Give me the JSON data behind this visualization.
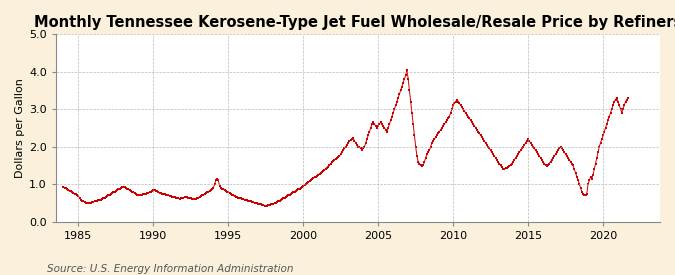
{
  "title": "Monthly Tennessee Kerosene-Type Jet Fuel Wholesale/Resale Price by Refiners",
  "ylabel": "Dollars per Gallon",
  "source": "Source: U.S. Energy Information Administration",
  "line_color": "#CC0000",
  "background_color": "#FAF0DC",
  "plot_bg_color": "#FFFFFF",
  "grid_color": "#AAAAAA",
  "xlim": [
    1983.5,
    2023.8
  ],
  "ylim": [
    0.0,
    5.0
  ],
  "yticks": [
    0.0,
    1.0,
    2.0,
    3.0,
    4.0,
    5.0
  ],
  "xticks": [
    1985,
    1990,
    1995,
    2000,
    2005,
    2010,
    2015,
    2020
  ],
  "title_fontsize": 10.5,
  "label_fontsize": 8,
  "tick_fontsize": 8,
  "source_fontsize": 7.5,
  "start_year": 1984,
  "start_month": 1,
  "prices": [
    0.93,
    0.91,
    0.89,
    0.87,
    0.85,
    0.83,
    0.81,
    0.79,
    0.77,
    0.75,
    0.73,
    0.71,
    0.68,
    0.63,
    0.58,
    0.56,
    0.54,
    0.53,
    0.51,
    0.5,
    0.49,
    0.5,
    0.51,
    0.52,
    0.53,
    0.54,
    0.55,
    0.56,
    0.57,
    0.58,
    0.59,
    0.6,
    0.62,
    0.64,
    0.66,
    0.68,
    0.7,
    0.72,
    0.74,
    0.76,
    0.78,
    0.8,
    0.82,
    0.84,
    0.86,
    0.88,
    0.9,
    0.92,
    0.93,
    0.92,
    0.9,
    0.88,
    0.86,
    0.84,
    0.82,
    0.8,
    0.78,
    0.76,
    0.74,
    0.72,
    0.7,
    0.7,
    0.71,
    0.72,
    0.73,
    0.74,
    0.75,
    0.76,
    0.77,
    0.78,
    0.8,
    0.82,
    0.84,
    0.85,
    0.83,
    0.81,
    0.79,
    0.77,
    0.76,
    0.75,
    0.74,
    0.73,
    0.72,
    0.71,
    0.7,
    0.69,
    0.68,
    0.67,
    0.66,
    0.65,
    0.64,
    0.63,
    0.62,
    0.61,
    0.62,
    0.63,
    0.64,
    0.65,
    0.66,
    0.65,
    0.64,
    0.63,
    0.62,
    0.61,
    0.6,
    0.6,
    0.61,
    0.62,
    0.64,
    0.66,
    0.68,
    0.7,
    0.72,
    0.74,
    0.76,
    0.78,
    0.8,
    0.82,
    0.84,
    0.86,
    0.9,
    1.0,
    1.1,
    1.15,
    1.1,
    0.95,
    0.9,
    0.88,
    0.86,
    0.84,
    0.82,
    0.8,
    0.78,
    0.76,
    0.74,
    0.72,
    0.7,
    0.68,
    0.66,
    0.65,
    0.64,
    0.63,
    0.62,
    0.61,
    0.6,
    0.59,
    0.58,
    0.57,
    0.56,
    0.55,
    0.54,
    0.53,
    0.52,
    0.51,
    0.5,
    0.49,
    0.48,
    0.47,
    0.46,
    0.45,
    0.44,
    0.43,
    0.43,
    0.43,
    0.44,
    0.45,
    0.46,
    0.47,
    0.48,
    0.49,
    0.5,
    0.52,
    0.54,
    0.56,
    0.58,
    0.6,
    0.62,
    0.64,
    0.66,
    0.68,
    0.7,
    0.72,
    0.74,
    0.76,
    0.78,
    0.8,
    0.82,
    0.84,
    0.86,
    0.88,
    0.9,
    0.92,
    0.95,
    0.98,
    1.0,
    1.02,
    1.05,
    1.08,
    1.1,
    1.13,
    1.16,
    1.18,
    1.2,
    1.22,
    1.25,
    1.28,
    1.3,
    1.33,
    1.35,
    1.38,
    1.4,
    1.43,
    1.46,
    1.5,
    1.55,
    1.58,
    1.62,
    1.65,
    1.68,
    1.7,
    1.72,
    1.75,
    1.8,
    1.85,
    1.9,
    1.95,
    2.0,
    2.05,
    2.1,
    2.15,
    2.18,
    2.2,
    2.22,
    2.15,
    2.1,
    2.05,
    2.0,
    1.98,
    1.95,
    1.92,
    1.95,
    2.0,
    2.1,
    2.2,
    2.3,
    2.4,
    2.5,
    2.6,
    2.65,
    2.6,
    2.55,
    2.5,
    2.55,
    2.6,
    2.65,
    2.6,
    2.55,
    2.5,
    2.45,
    2.4,
    2.5,
    2.6,
    2.7,
    2.8,
    2.9,
    3.0,
    3.1,
    3.2,
    3.3,
    3.4,
    3.5,
    3.6,
    3.7,
    3.8,
    3.9,
    4.05,
    3.8,
    3.5,
    3.2,
    2.9,
    2.6,
    2.3,
    2.0,
    1.75,
    1.6,
    1.55,
    1.5,
    1.48,
    1.5,
    1.6,
    1.7,
    1.8,
    1.85,
    1.9,
    2.0,
    2.1,
    2.15,
    2.2,
    2.25,
    2.3,
    2.35,
    2.4,
    2.45,
    2.5,
    2.55,
    2.6,
    2.65,
    2.7,
    2.75,
    2.8,
    2.9,
    3.0,
    3.1,
    3.15,
    3.2,
    3.25,
    3.2,
    3.15,
    3.1,
    3.05,
    3.0,
    2.95,
    2.9,
    2.85,
    2.8,
    2.75,
    2.7,
    2.65,
    2.6,
    2.55,
    2.5,
    2.45,
    2.4,
    2.35,
    2.3,
    2.25,
    2.2,
    2.15,
    2.1,
    2.05,
    2.0,
    1.95,
    1.9,
    1.85,
    1.8,
    1.75,
    1.7,
    1.65,
    1.6,
    1.55,
    1.5,
    1.45,
    1.4,
    1.4,
    1.42,
    1.44,
    1.46,
    1.48,
    1.5,
    1.55,
    1.6,
    1.65,
    1.7,
    1.75,
    1.8,
    1.85,
    1.9,
    1.95,
    2.0,
    2.05,
    2.1,
    2.15,
    2.2,
    2.15,
    2.1,
    2.05,
    2.0,
    1.95,
    1.9,
    1.85,
    1.8,
    1.75,
    1.7,
    1.65,
    1.6,
    1.55,
    1.5,
    1.48,
    1.5,
    1.55,
    1.6,
    1.65,
    1.7,
    1.75,
    1.8,
    1.85,
    1.9,
    1.95,
    2.0,
    1.95,
    1.9,
    1.85,
    1.8,
    1.75,
    1.7,
    1.65,
    1.6,
    1.55,
    1.5,
    1.4,
    1.3,
    1.2,
    1.1,
    1.0,
    0.9,
    0.8,
    0.75,
    0.72,
    0.7,
    0.75,
    1.0,
    1.1,
    1.2,
    1.15,
    1.25,
    1.4,
    1.55,
    1.7,
    1.85,
    2.0,
    2.1,
    2.2,
    2.3,
    2.4,
    2.5,
    2.6,
    2.7,
    2.8,
    2.9,
    3.0,
    3.1,
    3.2,
    3.25,
    3.3,
    3.2,
    3.1,
    3.0,
    2.9,
    3.0,
    3.1,
    3.2,
    3.25,
    3.3
  ]
}
